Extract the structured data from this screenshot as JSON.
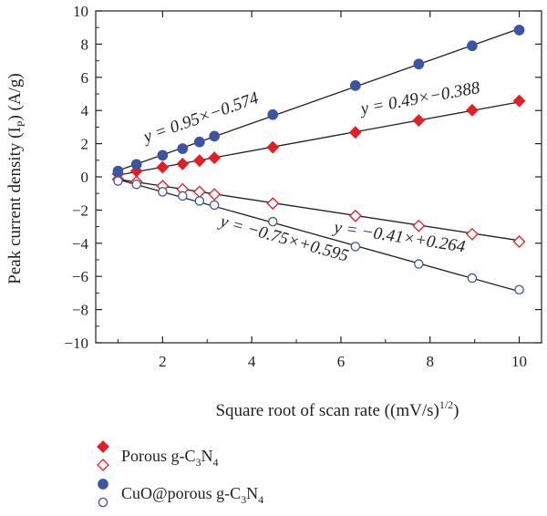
{
  "chart_data": {
    "type": "scatter",
    "xlabel": "Square root of scan rate ((mV/s)",
    "xlabel_sup": "1/2",
    "xlabel_tail": ")",
    "ylabel": "Peak current density (I",
    "ylabel_sub": "P",
    "ylabel_tail": ") (A/g)",
    "xlim": [
      0.5,
      10.5
    ],
    "ylim": [
      -10,
      10
    ],
    "xticks": [
      2,
      4,
      6,
      8,
      10
    ],
    "yticks": [
      -10,
      -8,
      -6,
      -4,
      -2,
      0,
      2,
      4,
      6,
      8,
      10
    ],
    "grid": false,
    "legend_position": "bottom-left, below plot",
    "x": [
      1,
      1.414,
      2,
      2.449,
      2.828,
      3.162,
      4.472,
      6.325,
      7.746,
      8.944,
      10
    ],
    "series": [
      {
        "key": "pg_anodic",
        "group": "porous",
        "marker": "diamond-filled",
        "color": "#e31e24",
        "values": [
          0.18,
          0.35,
          0.58,
          0.78,
          0.98,
          1.15,
          1.78,
          2.68,
          3.4,
          4.02,
          4.58
        ]
      },
      {
        "key": "pg_cathodic",
        "group": "porous",
        "marker": "diamond-open",
        "color": "#e31e24",
        "values": [
          -0.15,
          -0.3,
          -0.55,
          -0.75,
          -0.9,
          -1.05,
          -1.6,
          -2.35,
          -2.95,
          -3.45,
          -3.9
        ]
      },
      {
        "key": "cuo_anodic",
        "group": "cuo",
        "marker": "circle-filled",
        "color": "#3a55a4",
        "values": [
          0.35,
          0.75,
          1.3,
          1.7,
          2.1,
          2.45,
          3.75,
          5.5,
          6.8,
          7.9,
          8.85
        ]
      },
      {
        "key": "cuo_cathodic",
        "group": "cuo",
        "marker": "circle-open",
        "color": "#3a55a4",
        "values": [
          -0.25,
          -0.45,
          -0.9,
          -1.15,
          -1.45,
          -1.7,
          -2.7,
          -4.2,
          -5.25,
          -6.1,
          -6.8
        ]
      }
    ],
    "fit_lines": [
      {
        "slope": 0.95,
        "intercept": -0.574,
        "label": "y = 0.95×−0.574"
      },
      {
        "slope": 0.49,
        "intercept": -0.388,
        "label": "y = 0.49×−0.388"
      },
      {
        "slope": -0.41,
        "intercept": 0.264,
        "label": "y = −0.41×+0.264"
      },
      {
        "slope": -0.75,
        "intercept": 0.595,
        "label": "y = −0.75×+0.595"
      }
    ],
    "legend": [
      {
        "group": "porous",
        "label": "Porous g-C",
        "sub1": "3",
        "mid": "N",
        "sub2": "4"
      },
      {
        "group": "cuo",
        "label": "CuO@porous g-C",
        "sub1": "3",
        "mid": "N",
        "sub2": "4"
      }
    ]
  }
}
